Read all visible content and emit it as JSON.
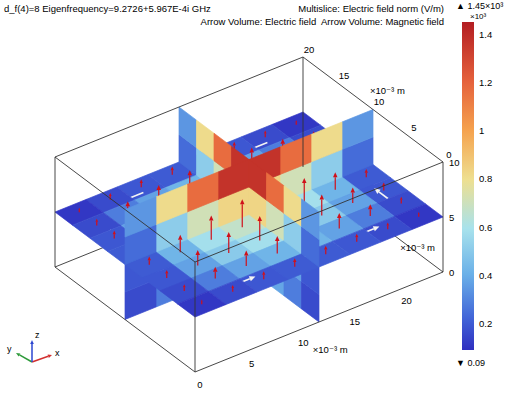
{
  "chart_data": {
    "type": "slice3d",
    "title": "d_f(4)=8 Eigenfrequency=9.2726+5.967E-4i GHz",
    "subtitle": [
      "Multislice: Electric field norm (V/m)",
      "Arrow Volume: Electric field  Arrow Volume: Magnetic field"
    ],
    "xlabel": "x",
    "ylabel": "y",
    "zlabel": "z",
    "xunit": "×10⁻³ m",
    "yunit": "×10⁻³ m",
    "zunit": "×10⁻³ m",
    "xlim": [
      0,
      24
    ],
    "ylim": [
      0,
      20
    ],
    "zlim": [
      0,
      10
    ],
    "xticks": [
      0,
      5,
      10,
      15,
      20
    ],
    "yticks": [
      0,
      5,
      10,
      15,
      20
    ],
    "zticks": [
      0,
      5,
      10
    ],
    "colorbar": {
      "lim": [
        0.09,
        1.45
      ],
      "ticks": [
        0.2,
        0.4,
        0.6,
        0.8,
        1,
        1.2,
        1.4
      ],
      "label": "×10³",
      "max_label": "▲ 1.45×10³",
      "min_label": "▼ 0.09"
    },
    "slices": [
      {
        "plane": "z",
        "at": 5,
        "values": [
          [
            0.11,
            0.16,
            0.19,
            0.2,
            0.2,
            0.19,
            0.16,
            0.11
          ],
          [
            0.16,
            0.28,
            0.37,
            0.42,
            0.42,
            0.37,
            0.28,
            0.16
          ],
          [
            0.19,
            0.37,
            0.5,
            0.58,
            0.58,
            0.5,
            0.37,
            0.19
          ],
          [
            0.2,
            0.42,
            0.58,
            0.67,
            0.67,
            0.58,
            0.42,
            0.2
          ],
          [
            0.2,
            0.42,
            0.58,
            0.67,
            0.67,
            0.58,
            0.42,
            0.2
          ],
          [
            0.19,
            0.37,
            0.5,
            0.58,
            0.58,
            0.5,
            0.37,
            0.19
          ],
          [
            0.16,
            0.28,
            0.37,
            0.42,
            0.42,
            0.37,
            0.28,
            0.16
          ],
          [
            0.11,
            0.16,
            0.19,
            0.2,
            0.2,
            0.19,
            0.16,
            0.11
          ]
        ]
      },
      {
        "plane": "y",
        "at": 10,
        "values": [
          [
            0.16,
            0.28,
            0.38,
            0.43,
            0.43,
            0.38,
            0.28,
            0.16
          ],
          [
            0.19,
            0.37,
            0.51,
            0.58,
            0.58,
            0.51,
            0.37,
            0.19
          ],
          [
            0.24,
            0.51,
            0.71,
            0.83,
            0.83,
            0.71,
            0.51,
            0.24
          ],
          [
            0.34,
            0.81,
            1.17,
            1.37,
            1.37,
            1.17,
            0.81,
            0.34
          ]
        ]
      },
      {
        "plane": "x",
        "at": 12,
        "values": [
          [
            0.16,
            0.28,
            0.38,
            0.43,
            0.43,
            0.38,
            0.28,
            0.16
          ],
          [
            0.19,
            0.37,
            0.51,
            0.58,
            0.58,
            0.51,
            0.37,
            0.19
          ],
          [
            0.24,
            0.51,
            0.71,
            0.83,
            0.83,
            0.71,
            0.51,
            0.24
          ],
          [
            0.34,
            0.81,
            1.17,
            1.37,
            1.37,
            1.17,
            0.81,
            0.34
          ]
        ]
      }
    ]
  }
}
